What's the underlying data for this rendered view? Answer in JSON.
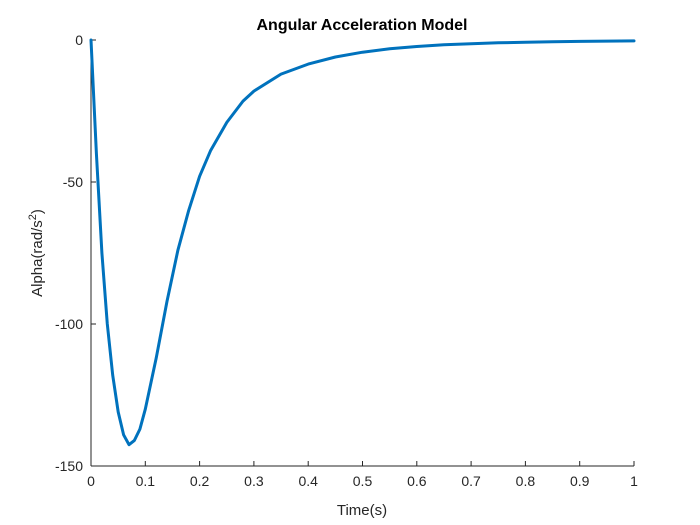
{
  "chart_data": {
    "type": "line",
    "title": "Angular Acceleration Model",
    "xlabel": "Time(s)",
    "ylabel": "Alpha(rad/s",
    "ylabel_superscript": "2",
    "ylabel_suffix": ")",
    "xlim": [
      0,
      1
    ],
    "ylim": [
      -150,
      0
    ],
    "xticks": [
      0,
      0.1,
      0.2,
      0.3,
      0.4,
      0.5,
      0.6,
      0.7,
      0.8,
      0.9,
      1
    ],
    "xtick_labels": [
      "0",
      "0.1",
      "0.2",
      "0.3",
      "0.4",
      "0.5",
      "0.6",
      "0.7",
      "0.8",
      "0.9",
      "1"
    ],
    "yticks": [
      0,
      -50,
      -100,
      -150
    ],
    "ytick_labels": [
      "0",
      "-50",
      "-100",
      "-150"
    ],
    "grid": false,
    "line_color": "#0072BD",
    "series": [
      {
        "x": [
          0,
          0.01,
          0.02,
          0.03,
          0.04,
          0.05,
          0.06,
          0.07,
          0.08,
          0.09,
          0.1,
          0.12,
          0.14,
          0.16,
          0.18,
          0.2,
          0.22,
          0.25,
          0.28,
          0.3,
          0.35,
          0.4,
          0.45,
          0.5,
          0.55,
          0.6,
          0.65,
          0.7,
          0.75,
          0.8,
          0.85,
          0.9,
          0.95,
          1
        ],
        "y": [
          0,
          -40,
          -75,
          -100,
          -118,
          -131,
          -139,
          -142.5,
          -141,
          -137,
          -130,
          -112,
          -92,
          -74,
          -60,
          -48,
          -39,
          -29,
          -21.5,
          -18,
          -12,
          -8.5,
          -6,
          -4.3,
          -3.1,
          -2.3,
          -1.7,
          -1.3,
          -1.0,
          -0.8,
          -0.6,
          -0.5,
          -0.4,
          -0.3
        ]
      }
    ]
  }
}
